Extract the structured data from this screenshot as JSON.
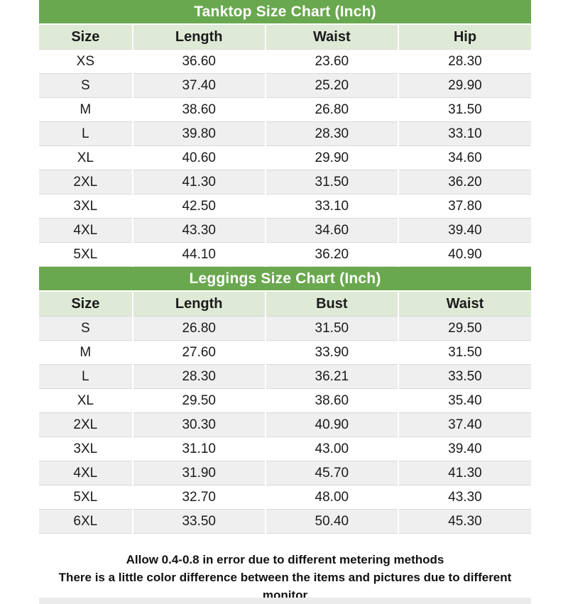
{
  "colors": {
    "title_bar": "#6aa84f",
    "title_text": "#ffffff",
    "header_bg": "#dee9d6",
    "row_bg": "#ffffff",
    "row_alt_bg": "#efefef",
    "grid_line": "#d9d9d9",
    "text": "#1b1b1b",
    "bottom_strip": "#ebebeb",
    "page_bg": "#ffffff"
  },
  "chart_data": [
    {
      "type": "table",
      "title": "Tanktop Size Chart (Inch)",
      "columns": [
        "Size",
        "Length",
        "Waist",
        "Hip"
      ],
      "rows": [
        [
          "XS",
          "36.60",
          "23.60",
          "28.30"
        ],
        [
          "S",
          "37.40",
          "25.20",
          "29.90"
        ],
        [
          "M",
          "38.60",
          "26.80",
          "31.50"
        ],
        [
          "L",
          "39.80",
          "28.30",
          "33.10"
        ],
        [
          "XL",
          "40.60",
          "29.90",
          "34.60"
        ],
        [
          "2XL",
          "41.30",
          "31.50",
          "36.20"
        ],
        [
          "3XL",
          "42.50",
          "33.10",
          "37.80"
        ],
        [
          "4XL",
          "43.30",
          "34.60",
          "39.40"
        ],
        [
          "5XL",
          "44.10",
          "36.20",
          "40.90"
        ]
      ],
      "first_row_shaded": false,
      "layout": {
        "column_widths_pct": [
          19,
          27,
          27,
          27
        ],
        "zebra_striping": true,
        "grid": true
      }
    },
    {
      "type": "table",
      "title": "Leggings Size Chart (Inch)",
      "columns": [
        "Size",
        "Length",
        "Bust",
        "Waist"
      ],
      "rows": [
        [
          "S",
          "26.80",
          "31.50",
          "29.50"
        ],
        [
          "M",
          "27.60",
          "33.90",
          "31.50"
        ],
        [
          "L",
          "28.30",
          "36.21",
          "33.50"
        ],
        [
          "XL",
          "29.50",
          "38.60",
          "35.40"
        ],
        [
          "2XL",
          "30.30",
          "40.90",
          "37.40"
        ],
        [
          "3XL",
          "31.10",
          "43.00",
          "39.40"
        ],
        [
          "4XL",
          "31.90",
          "45.70",
          "41.30"
        ],
        [
          "5XL",
          "32.70",
          "48.00",
          "43.30"
        ],
        [
          "6XL",
          "33.50",
          "50.40",
          "45.30"
        ]
      ],
      "first_row_shaded": true,
      "layout": {
        "column_widths_pct": [
          19,
          27,
          27,
          27
        ],
        "zebra_striping": true,
        "grid": true
      }
    }
  ],
  "footer": {
    "lines": [
      "Allow 0.4-0.8 in error due to different metering methods",
      "There is a little color difference between the items and pictures due to different monitor"
    ]
  }
}
